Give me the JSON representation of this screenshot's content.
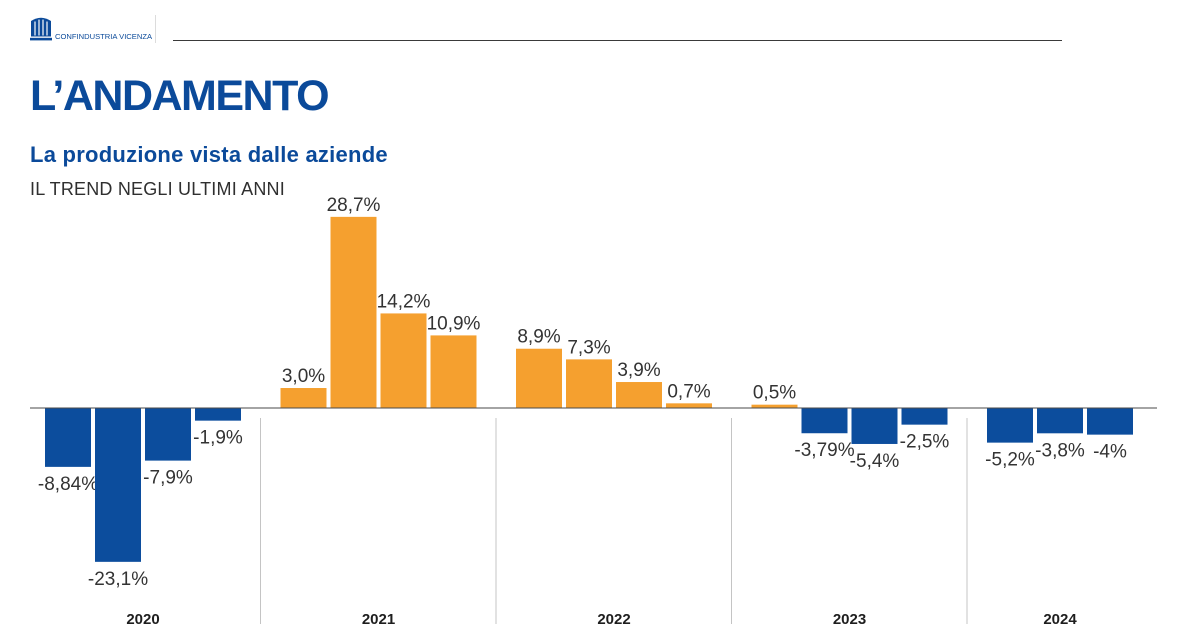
{
  "brand": {
    "logo_text": "CONFINDUSTRIA VICENZA",
    "logo_icon": "confindustria-emblem-icon"
  },
  "header": {
    "title": "L’ANDAMENTO",
    "subtitle": "La produzione vista dalle aziende",
    "caption": "IL TREND NEGLI ULTIMI ANNI"
  },
  "colors": {
    "brand_blue": "#0b4a9a",
    "negative_bar": "#0c4d9d",
    "positive_bar": "#f5a02f",
    "label_text": "#333333"
  },
  "chart_data": {
    "type": "bar",
    "categories": [
      "2020",
      "2021",
      "2022",
      "2023",
      "2024"
    ],
    "values": [
      [
        -8.84,
        -23.1,
        -7.9,
        -1.9
      ],
      [
        3.0,
        28.7,
        14.2,
        10.9
      ],
      [
        8.9,
        7.3,
        3.9,
        0.7
      ],
      [
        0.5,
        -3.79,
        -5.4,
        -2.5
      ],
      [
        -5.2,
        -3.8,
        -4
      ]
    ],
    "data_labels": [
      [
        "-8,84%",
        "-23,1%",
        "-7,9%",
        "-1,9%"
      ],
      [
        "3,0%",
        "28,7%",
        "14,2%",
        "10,9%"
      ],
      [
        "8,9%",
        "7,3%",
        "3,9%",
        "0,7%"
      ],
      [
        "0,5%",
        "-3,79%",
        "-5,4%",
        "-2,5%"
      ],
      [
        "-5,2%",
        "-3,8%",
        "-4%"
      ]
    ],
    "grid": false,
    "legend": "none"
  }
}
